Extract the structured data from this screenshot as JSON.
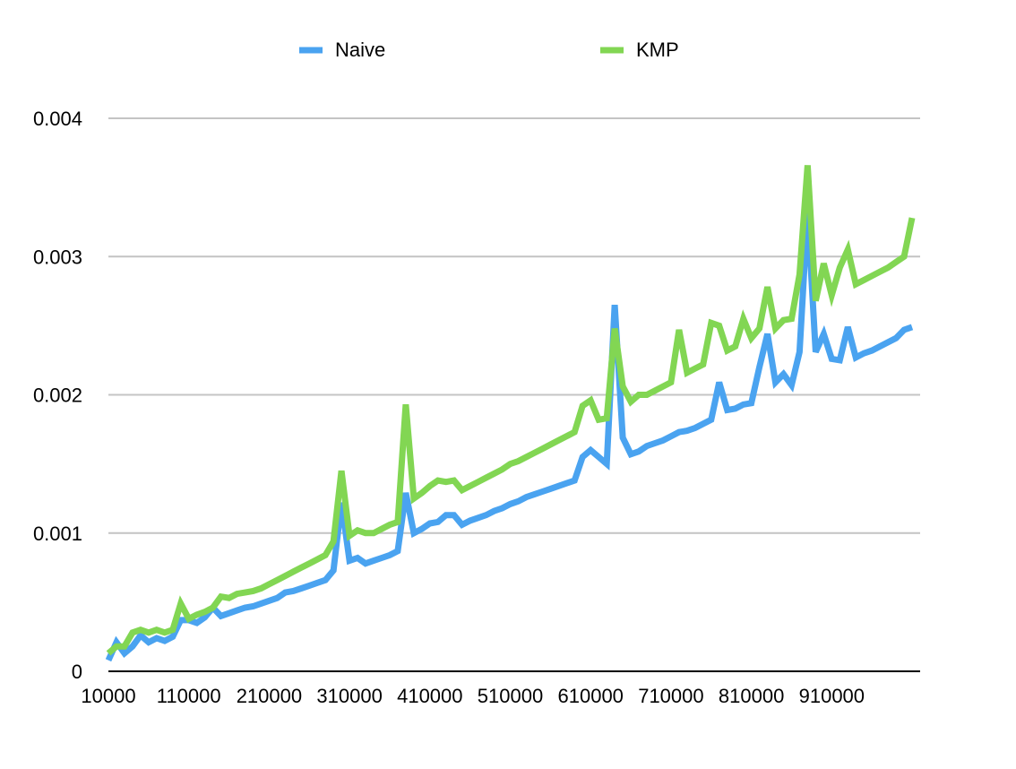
{
  "chart_data": {
    "type": "line",
    "title": "",
    "xlabel": "",
    "ylabel": "",
    "ylim": [
      0,
      0.004
    ],
    "yticks": [
      "0",
      "0.001",
      "0.002",
      "0.003",
      "0.004"
    ],
    "xtick_labels": [
      "10000",
      "110000",
      "210000",
      "310000",
      "410000",
      "510000",
      "610000",
      "710000",
      "810000",
      "910000"
    ],
    "legend_position": "top",
    "grid": true,
    "x": [
      10000,
      20000,
      30000,
      40000,
      50000,
      60000,
      70000,
      80000,
      90000,
      100000,
      110000,
      120000,
      130000,
      140000,
      150000,
      160000,
      170000,
      180000,
      190000,
      200000,
      210000,
      220000,
      230000,
      240000,
      250000,
      260000,
      270000,
      280000,
      290000,
      300000,
      310000,
      320000,
      330000,
      340000,
      350000,
      360000,
      370000,
      380000,
      390000,
      400000,
      410000,
      420000,
      430000,
      440000,
      450000,
      460000,
      470000,
      480000,
      490000,
      500000,
      510000,
      520000,
      530000,
      540000,
      550000,
      560000,
      570000,
      580000,
      590000,
      600000,
      610000,
      620000,
      630000,
      640000,
      650000,
      660000,
      670000,
      680000,
      690000,
      700000,
      710000,
      720000,
      730000,
      740000,
      750000,
      760000,
      770000,
      780000,
      790000,
      800000,
      810000,
      820000,
      830000,
      840000,
      850000,
      860000,
      870000,
      880000,
      890000,
      900000,
      910000,
      920000,
      930000,
      940000,
      950000,
      960000,
      970000,
      980000,
      990000,
      1000000,
      1010000
    ],
    "series": [
      {
        "name": "Naive",
        "color": "#4aa3f0",
        "values": [
          8e-05,
          0.00021,
          0.00013,
          0.00018,
          0.00026,
          0.00021,
          0.00024,
          0.00022,
          0.00025,
          0.00037,
          0.00037,
          0.00035,
          0.00039,
          0.00046,
          0.0004,
          0.00042,
          0.00044,
          0.00046,
          0.00047,
          0.00049,
          0.00051,
          0.00053,
          0.00057,
          0.00058,
          0.0006,
          0.00062,
          0.00064,
          0.00066,
          0.00073,
          0.00122,
          0.0008,
          0.00082,
          0.00078,
          0.0008,
          0.00082,
          0.00084,
          0.00087,
          0.00129,
          0.001,
          0.00103,
          0.00107,
          0.00108,
          0.00113,
          0.00113,
          0.00106,
          0.00109,
          0.00111,
          0.00113,
          0.00116,
          0.00118,
          0.00121,
          0.00123,
          0.00126,
          0.00128,
          0.0013,
          0.00132,
          0.00134,
          0.00136,
          0.00138,
          0.00155,
          0.0016,
          0.00155,
          0.0015,
          0.00265,
          0.00169,
          0.00157,
          0.00159,
          0.00163,
          0.00165,
          0.00167,
          0.0017,
          0.00173,
          0.00174,
          0.00176,
          0.00179,
          0.00182,
          0.00209,
          0.00189,
          0.0019,
          0.00193,
          0.00194,
          0.0022,
          0.00244,
          0.00209,
          0.00215,
          0.00207,
          0.00231,
          0.00333,
          0.00231,
          0.00244,
          0.00226,
          0.00225,
          0.00249,
          0.00227,
          0.0023,
          0.00232,
          0.00235,
          0.00238,
          0.00241,
          0.00247,
          0.00249
        ],
        "values_tail": [
          0.0025
        ]
      },
      {
        "name": "KMP",
        "color": "#82d653",
        "values": [
          0.00013,
          0.00018,
          0.00018,
          0.00028,
          0.0003,
          0.00028,
          0.0003,
          0.00028,
          0.0003,
          0.00049,
          0.00038,
          0.00041,
          0.00043,
          0.00046,
          0.00054,
          0.00053,
          0.00056,
          0.00057,
          0.00058,
          0.0006,
          0.00063,
          0.00066,
          0.00069,
          0.00072,
          0.00075,
          0.00078,
          0.00081,
          0.00084,
          0.00094,
          0.00145,
          0.00098,
          0.00102,
          0.001,
          0.001,
          0.00103,
          0.00106,
          0.00108,
          0.00193,
          0.00125,
          0.00129,
          0.00134,
          0.00138,
          0.00137,
          0.00138,
          0.00131,
          0.00134,
          0.00137,
          0.0014,
          0.00143,
          0.00146,
          0.0015,
          0.00152,
          0.00155,
          0.00158,
          0.00161,
          0.00164,
          0.00167,
          0.0017,
          0.00173,
          0.00192,
          0.00196,
          0.00182,
          0.00183,
          0.00248,
          0.00206,
          0.00195,
          0.002,
          0.002,
          0.00203,
          0.00206,
          0.00209,
          0.00247,
          0.00216,
          0.00219,
          0.00222,
          0.00252,
          0.0025,
          0.00232,
          0.00235,
          0.00255,
          0.00241,
          0.00248,
          0.00278,
          0.00248,
          0.00254,
          0.00255,
          0.00287,
          0.00366,
          0.00268,
          0.00295,
          0.00272,
          0.00292,
          0.00305,
          0.0028,
          0.00283,
          0.00286,
          0.00289,
          0.00292,
          0.00296,
          0.003,
          0.00328
        ],
        "values_tail": [
          0.00305
        ]
      }
    ]
  }
}
